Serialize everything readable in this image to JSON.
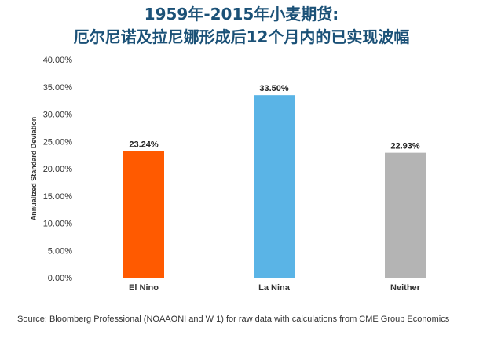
{
  "title_line1": "1959年-2015年小麦期货:",
  "title_line2": "厄尔尼诺及拉尼娜形成后12个月内的已实现波幅",
  "source": "Source: Bloomberg Professional (NOAAONI and W 1) for raw data with calculations from CME Group Economics",
  "chart_data": {
    "type": "bar",
    "categories": [
      "El Nino",
      "La Nina",
      "Neither"
    ],
    "values": [
      23.24,
      33.5,
      22.93
    ],
    "data_labels": [
      "23.24%",
      "33.50%",
      "22.93%"
    ],
    "colors": [
      "#ff5a00",
      "#5ab4e6",
      "#b4b4b4"
    ],
    "ylabel": "Annualized Standard Deviation",
    "ylim": [
      0,
      40
    ],
    "yticks": [
      0,
      5,
      10,
      15,
      20,
      25,
      30,
      35,
      40
    ],
    "ytick_labels": [
      "0.00%",
      "5.00%",
      "10.00%",
      "15.00%",
      "20.00%",
      "25.00%",
      "30.00%",
      "35.00%",
      "40.00%"
    ],
    "grid": false,
    "legend": "none"
  }
}
